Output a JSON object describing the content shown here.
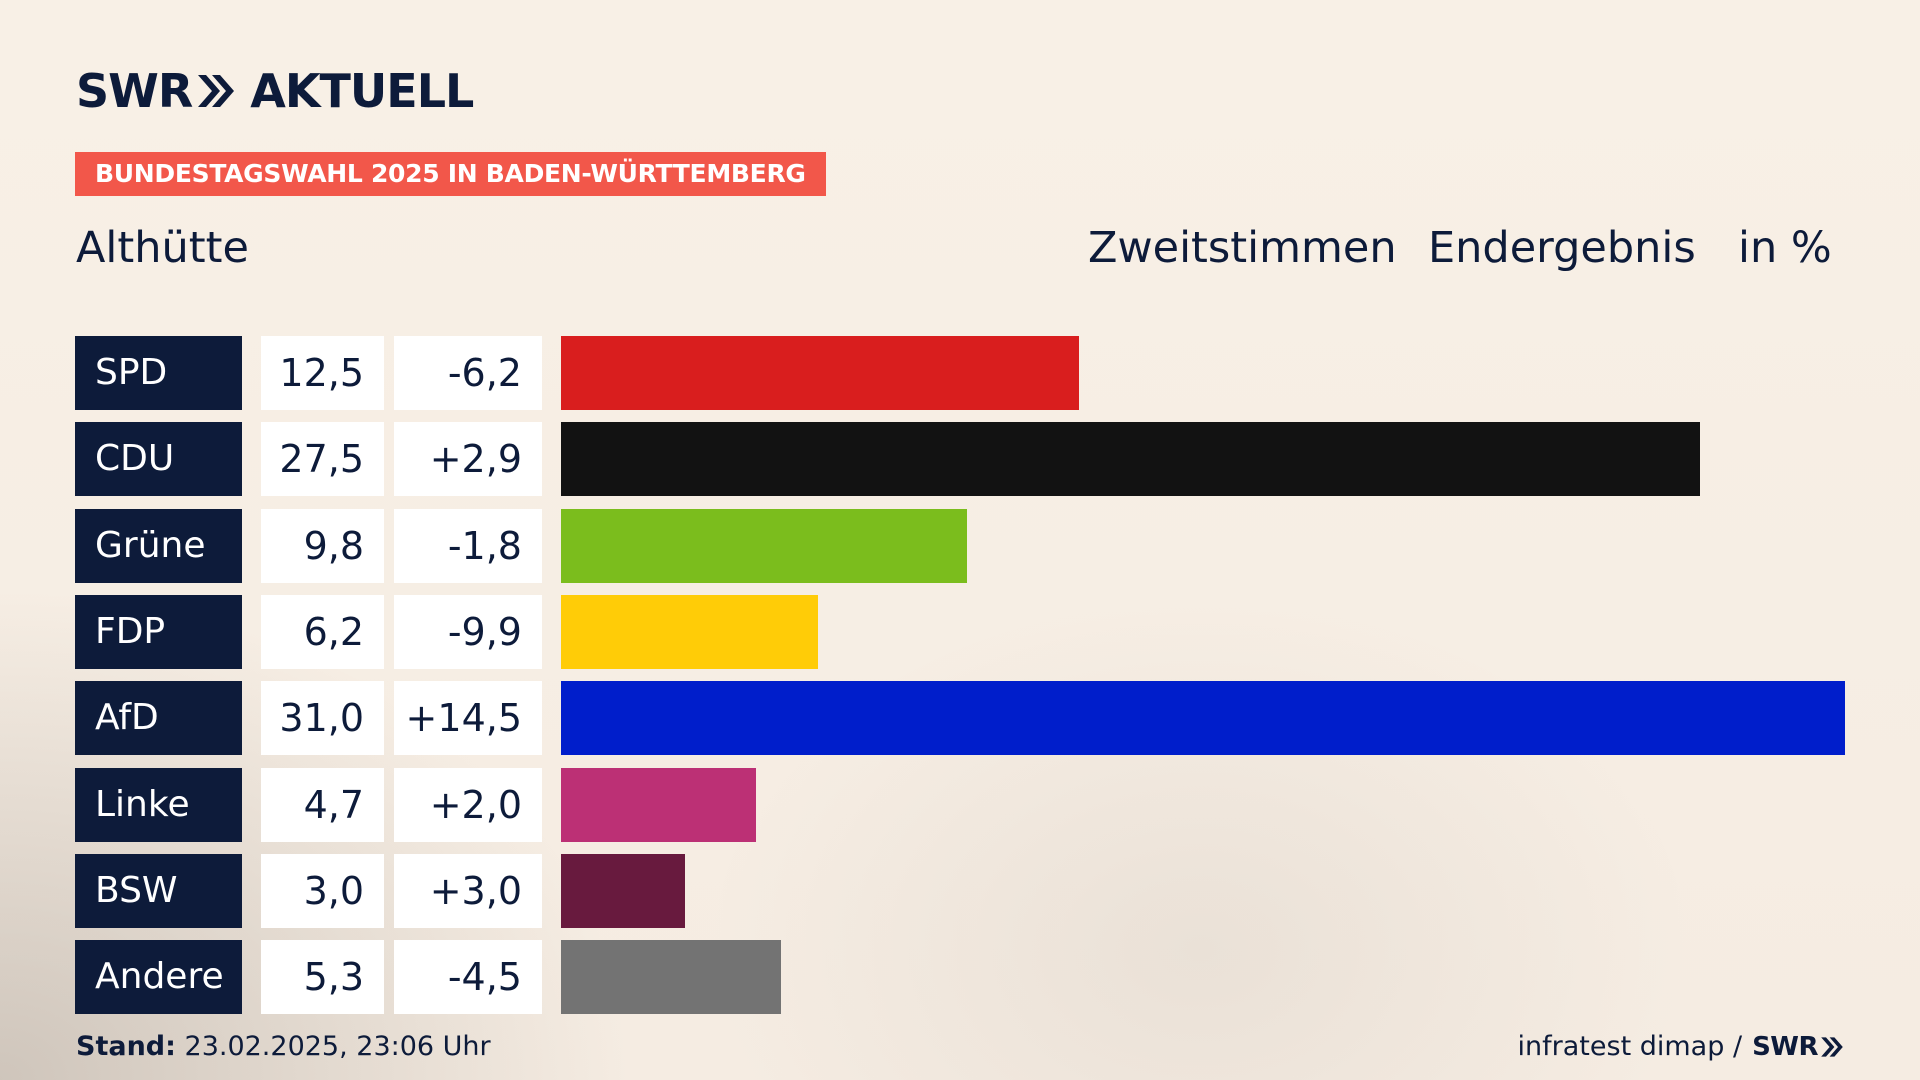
{
  "brand": {
    "logo_left": "SWR",
    "logo_right": "AKTUELL"
  },
  "banner": "BUNDESTAGSWAHL 2025 IN BADEN-WÜRTTEMBERG",
  "place": "Althütte",
  "header": {
    "vote_type": "Zweitstimmen",
    "result": "Endergebnis",
    "unit": "in %"
  },
  "colors": {
    "navy": "#0d1b3a",
    "banner": "#f2574a"
  },
  "chart_data": {
    "type": "bar",
    "orientation": "horizontal",
    "categories": [
      "SPD",
      "CDU",
      "Grüne",
      "FDP",
      "AfD",
      "Linke",
      "BSW",
      "Andere"
    ],
    "values": [
      12.5,
      27.5,
      9.8,
      6.2,
      31.0,
      4.7,
      3.0,
      5.3
    ],
    "value_labels": [
      "12,5",
      "27,5",
      "9,8",
      "6,2",
      "31,0",
      "4,7",
      "3,0",
      "5,3"
    ],
    "diff_labels": [
      "-6,2",
      "+2,9",
      "-1,8",
      "-9,9",
      "+14,5",
      "+2,0",
      "+3,0",
      "-4,5"
    ],
    "colors": [
      "#d91e1e",
      "#121212",
      "#7bbd1d",
      "#ffcc07",
      "#001ecb",
      "#bc3075",
      "#681a3e",
      "#737373"
    ],
    "xlim": [
      0,
      31.0
    ]
  },
  "footer": {
    "stand_label": "Stand:",
    "stand_value": "23.02.2025, 23:06 Uhr",
    "source": "infratest dimap /",
    "source_logo": "SWR"
  }
}
